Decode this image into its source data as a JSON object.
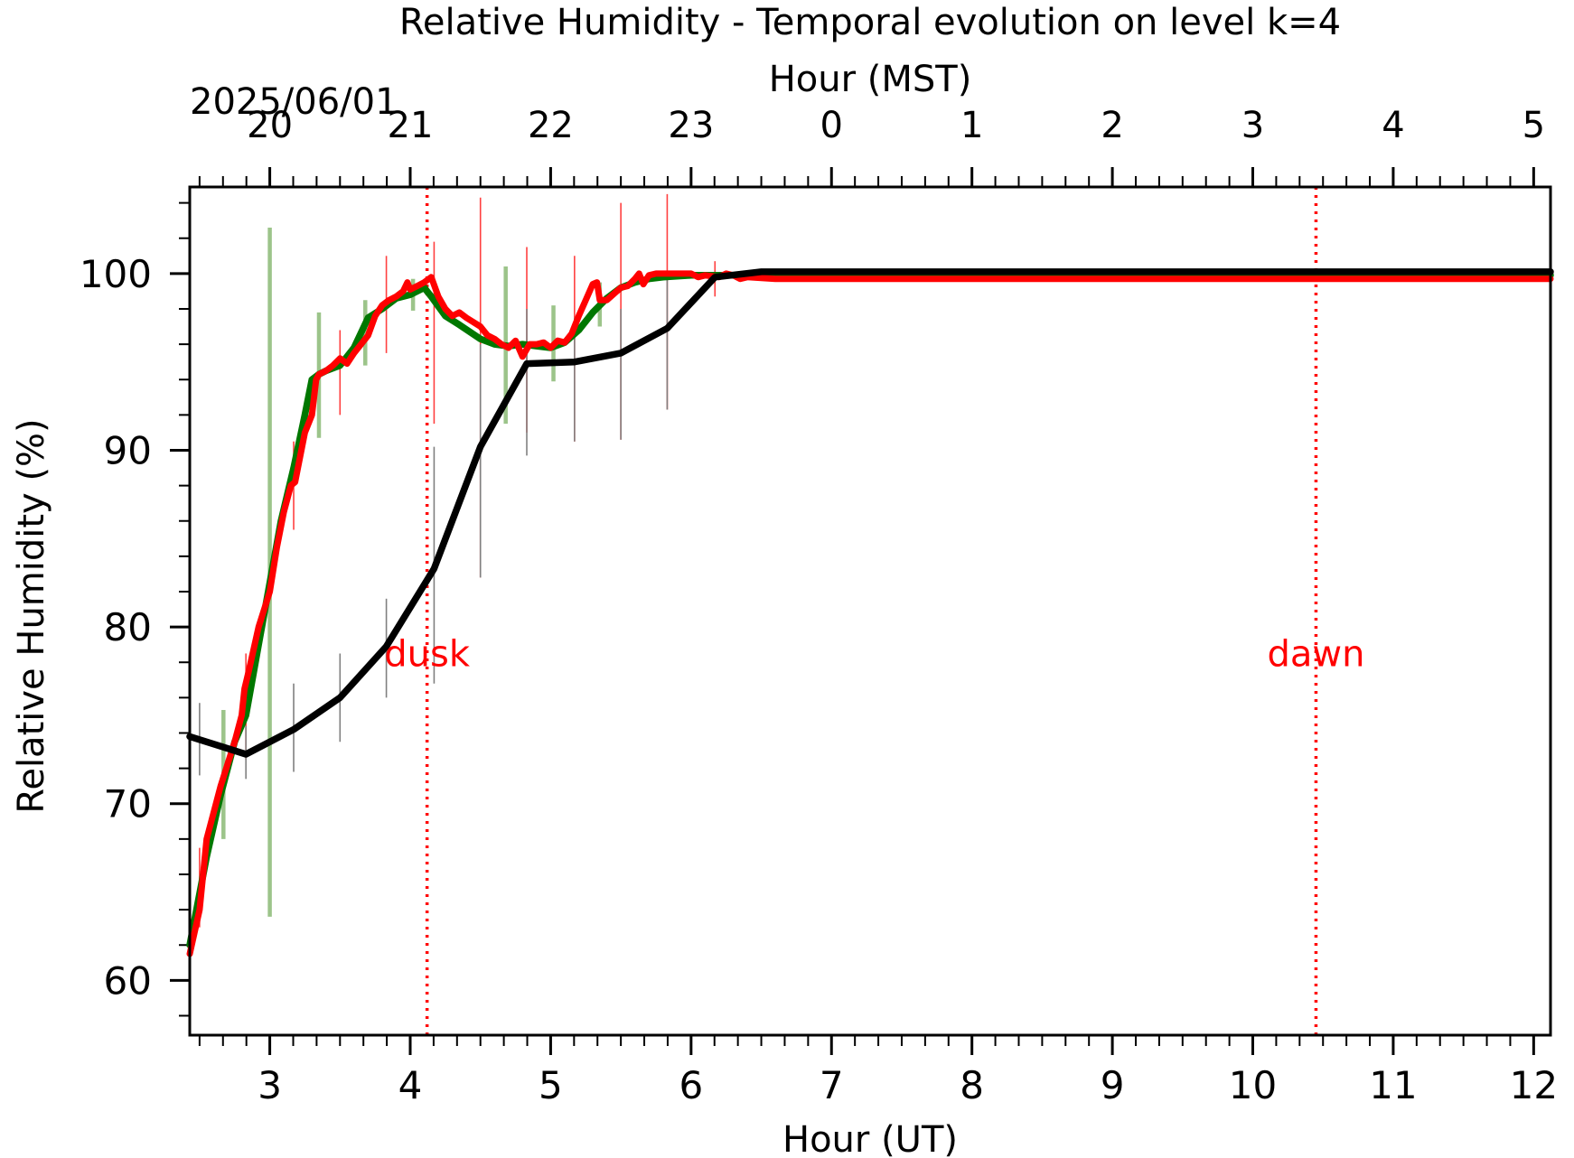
{
  "chart_data": {
    "type": "line",
    "title": "Relative Humidity - Temporal evolution on level k=4",
    "xlabel": "Hour (UT)",
    "x2label": "Hour (MST)",
    "ylabel": "Relative Humidity (%)",
    "date_label": "2025/06/01",
    "xlim": [
      2.43,
      12.12
    ],
    "ylim": [
      56.9,
      104.9
    ],
    "x_ticks": [
      3,
      4,
      5,
      6,
      7,
      8,
      9,
      10,
      11,
      12
    ],
    "x_tick_labels": [
      "3",
      "4",
      "5",
      "6",
      "7",
      "8",
      "9",
      "10",
      "11",
      "12"
    ],
    "x2_ticks": [
      3,
      4,
      5,
      6,
      7,
      8,
      9,
      10,
      11,
      12
    ],
    "x2_tick_labels": [
      "20",
      "21",
      "22",
      "23",
      "0",
      "1",
      "2",
      "3",
      "4",
      "5"
    ],
    "y_ticks": [
      60,
      70,
      80,
      90,
      100
    ],
    "y_tick_labels": [
      "60",
      "70",
      "80",
      "90",
      "100"
    ],
    "grid": false,
    "annotations": [
      {
        "text": "dusk",
        "x": 4.12,
        "y": 78.5,
        "color": "#ff0000"
      },
      {
        "text": "dawn",
        "x": 10.45,
        "y": 78.5,
        "color": "#ff0000"
      }
    ],
    "vlines": [
      {
        "x": 4.12,
        "color": "#ff0000",
        "style": "dotted"
      },
      {
        "x": 10.45,
        "color": "#ff0000",
        "style": "dotted"
      }
    ],
    "series": [
      {
        "color": "#007700",
        "x": [
          2.43,
          2.55,
          2.65,
          2.75,
          2.83,
          2.92,
          3.0,
          3.08,
          3.17,
          3.25,
          3.3,
          3.35,
          3.4,
          3.5,
          3.6,
          3.7,
          3.8,
          3.9,
          4.0,
          4.1,
          4.15,
          4.25,
          4.35,
          4.5,
          4.6,
          4.7,
          4.8,
          4.9,
          5.0,
          5.1,
          5.2,
          5.3,
          5.4,
          5.5,
          5.6,
          5.7,
          5.8,
          5.9,
          6.0,
          6.1,
          6.2,
          6.3,
          6.4,
          6.5,
          7.0,
          8.0,
          9.0,
          10.0,
          11.0,
          12.12
        ],
        "y": [
          62,
          67,
          70.5,
          73.5,
          75,
          79,
          82.5,
          86,
          89,
          92,
          94,
          94.3,
          94.5,
          94.8,
          95.8,
          97.5,
          98,
          98.6,
          98.8,
          99.2,
          98.7,
          97.6,
          97.1,
          96.3,
          96.0,
          95.9,
          96.0,
          95.9,
          95.8,
          96.1,
          96.8,
          97.8,
          98.6,
          99.2,
          99.5,
          99.7,
          99.8,
          99.85,
          99.9,
          99.9,
          99.9,
          99.9,
          99.9,
          99.9,
          99.9,
          99.9,
          99.9,
          99.9,
          99.9,
          99.9
        ]
      },
      {
        "color": "#ff0000",
        "x": [
          2.43,
          2.5,
          2.55,
          2.65,
          2.75,
          2.8,
          2.82,
          2.85,
          2.92,
          3.0,
          3.05,
          3.1,
          3.15,
          3.18,
          3.2,
          3.25,
          3.3,
          3.33,
          3.35,
          3.4,
          3.45,
          3.5,
          3.55,
          3.6,
          3.7,
          3.75,
          3.8,
          3.85,
          3.9,
          3.95,
          3.98,
          4.0,
          4.05,
          4.1,
          4.15,
          4.2,
          4.25,
          4.3,
          4.35,
          4.4,
          4.5,
          4.55,
          4.6,
          4.65,
          4.7,
          4.75,
          4.8,
          4.85,
          4.9,
          4.95,
          5.0,
          5.05,
          5.1,
          5.15,
          5.2,
          5.25,
          5.3,
          5.33,
          5.35,
          5.4,
          5.5,
          5.55,
          5.6,
          5.63,
          5.66,
          5.7,
          5.75,
          5.8,
          5.85,
          5.9,
          6.0,
          6.05,
          6.1,
          6.2,
          6.25,
          6.3,
          6.35,
          6.4,
          6.6,
          7.0,
          8.0,
          9.0,
          10.0,
          11.0,
          12.12
        ],
        "y": [
          61.5,
          64,
          68,
          71,
          73.5,
          75,
          76.5,
          77.5,
          80,
          82,
          84.5,
          86.5,
          88,
          88.2,
          89,
          91,
          92,
          94,
          94.3,
          94.5,
          94.8,
          95.2,
          94.9,
          95.5,
          96.5,
          97.6,
          98.2,
          98.5,
          98.7,
          99.0,
          99.5,
          99.1,
          99.3,
          99.5,
          99.8,
          98.7,
          98.0,
          97.6,
          97.8,
          97.5,
          97.0,
          96.5,
          96.3,
          96.0,
          95.8,
          96.2,
          95.3,
          96.0,
          96.0,
          96.1,
          95.8,
          96.2,
          96.1,
          96.6,
          97.6,
          98.5,
          99.4,
          99.5,
          98.5,
          98.5,
          99.2,
          99.3,
          99.7,
          100.0,
          99.4,
          99.9,
          100.0,
          100.0,
          100.0,
          100.0,
          100.0,
          99.8,
          99.9,
          99.8,
          100.0,
          99.9,
          99.7,
          99.8,
          99.7,
          99.7,
          99.7,
          99.7,
          99.7,
          99.7,
          99.7
        ]
      },
      {
        "color": "#000000",
        "x": [
          2.43,
          2.83,
          3.17,
          3.5,
          3.83,
          4.17,
          4.5,
          4.83,
          5.17,
          5.5,
          5.83,
          6.17,
          6.5,
          7.0,
          8.0,
          9.0,
          10.0,
          11.0,
          12.12
        ],
        "y": [
          73.8,
          72.8,
          74.2,
          76.0,
          78.9,
          83.3,
          90.2,
          94.9,
          95.0,
          95.5,
          96.9,
          99.8,
          100.1,
          100.1,
          100.1,
          100.1,
          100.1,
          100.1,
          100.1
        ]
      }
    ],
    "error_bars": [
      {
        "color": "#9cc48a",
        "width": "thick",
        "bars": [
          {
            "x": 2.67,
            "low": 68.0,
            "high": 75.3
          },
          {
            "x": 3.0,
            "low": 63.6,
            "high": 102.6
          },
          {
            "x": 3.35,
            "low": 90.7,
            "high": 97.8
          },
          {
            "x": 3.68,
            "low": 94.8,
            "high": 98.5
          },
          {
            "x": 4.02,
            "low": 97.9,
            "high": 99.7
          },
          {
            "x": 4.68,
            "low": 91.5,
            "high": 100.4
          },
          {
            "x": 5.02,
            "low": 93.9,
            "high": 98.2
          },
          {
            "x": 5.35,
            "low": 97.0,
            "high": 99.5
          }
        ]
      },
      {
        "color": "#ff4040",
        "width": "thin",
        "bars": [
          {
            "x": 2.5,
            "low": 63.0,
            "high": 67.5
          },
          {
            "x": 2.83,
            "low": 72.5,
            "high": 78.5
          },
          {
            "x": 3.17,
            "low": 85.5,
            "high": 90.5
          },
          {
            "x": 3.5,
            "low": 92.0,
            "high": 96.8
          },
          {
            "x": 3.83,
            "low": 95.5,
            "high": 101.0
          },
          {
            "x": 4.17,
            "low": 91.5,
            "high": 101.8
          },
          {
            "x": 4.5,
            "low": 82.8,
            "high": 104.3
          },
          {
            "x": 4.83,
            "low": 91.0,
            "high": 101.5
          },
          {
            "x": 5.17,
            "low": 90.5,
            "high": 101.0
          },
          {
            "x": 5.5,
            "low": 90.6,
            "high": 104.0
          },
          {
            "x": 5.83,
            "low": 92.3,
            "high": 104.5
          },
          {
            "x": 6.17,
            "low": 98.7,
            "high": 100.7
          }
        ]
      },
      {
        "color": "#808080",
        "width": "thin",
        "bars": [
          {
            "x": 2.5,
            "low": 71.6,
            "high": 75.7
          },
          {
            "x": 2.83,
            "low": 71.4,
            "high": 74.4
          },
          {
            "x": 3.17,
            "low": 71.8,
            "high": 76.8
          },
          {
            "x": 3.5,
            "low": 73.5,
            "high": 78.5
          },
          {
            "x": 3.83,
            "low": 76.0,
            "high": 81.6
          },
          {
            "x": 4.17,
            "low": 76.8,
            "high": 90.2
          },
          {
            "x": 4.5,
            "low": 82.8,
            "high": 96.0
          },
          {
            "x": 4.83,
            "low": 89.7,
            "high": 98.0
          },
          {
            "x": 5.17,
            "low": 90.5,
            "high": 97.5
          },
          {
            "x": 5.5,
            "low": 90.6,
            "high": 98.0
          },
          {
            "x": 5.83,
            "low": 92.3,
            "high": 100.0
          }
        ]
      }
    ]
  }
}
